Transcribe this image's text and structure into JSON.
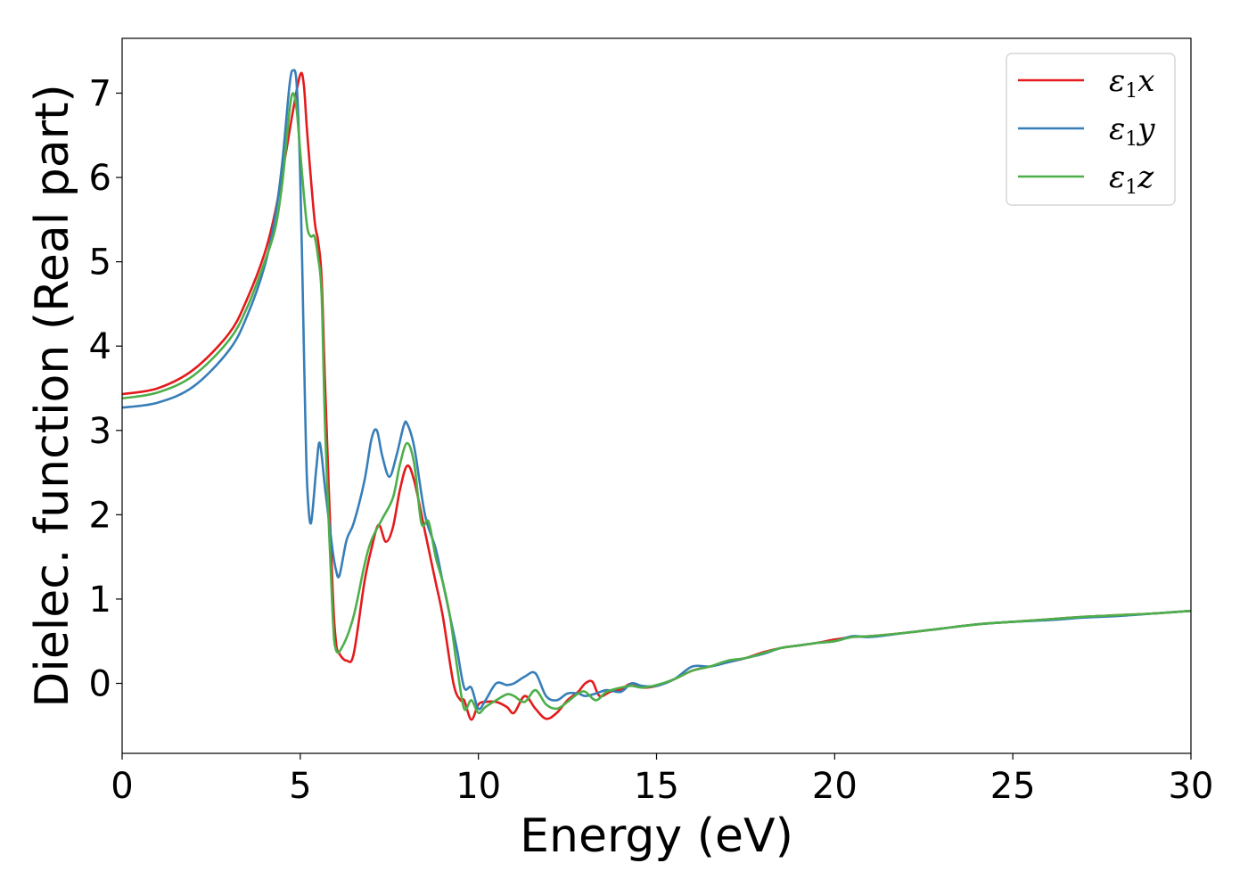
{
  "chart_data": {
    "type": "line",
    "title": "",
    "xlabel": "Energy (eV)",
    "ylabel": "Dielec. function (Real part)",
    "xlim": [
      0,
      30
    ],
    "ylim": [
      -0.83,
      7.65
    ],
    "xticks": [
      0,
      5,
      10,
      15,
      20,
      25,
      30
    ],
    "yticks": [
      0,
      1,
      2,
      3,
      4,
      5,
      6,
      7
    ],
    "grid": false,
    "legend_position": "top-right",
    "series": [
      {
        "name": "ε₁x",
        "legend_main": "ε",
        "legend_sub": "1",
        "legend_tail": "x",
        "color": "#e41a1c",
        "x": [
          0,
          1,
          2,
          3,
          3.5,
          4,
          4.3,
          4.6,
          4.8,
          5.0,
          5.1,
          5.2,
          5.4,
          5.5,
          5.6,
          5.7,
          5.9,
          6.0,
          6.1,
          6.3,
          6.5,
          6.8,
          7.0,
          7.2,
          7.4,
          7.6,
          7.8,
          8.0,
          8.2,
          8.5,
          8.8,
          9.0,
          9.3,
          9.5,
          9.6,
          9.8,
          10.0,
          10.2,
          10.5,
          10.8,
          11.0,
          11.3,
          11.6,
          11.9,
          12.2,
          12.5,
          12.8,
          13.0,
          13.2,
          13.4,
          13.7,
          14.0,
          14.3,
          14.6,
          15.0,
          15.5,
          16.0,
          16.5,
          17.0,
          17.5,
          18.0,
          18.5,
          19.0,
          19.5,
          20.0,
          20.5,
          21.0,
          22.0,
          23.0,
          24.0,
          25.0,
          26.0,
          27.0,
          28.0,
          29.0,
          30.0
        ],
        "y": [
          3.43,
          3.5,
          3.72,
          4.15,
          4.55,
          5.1,
          5.6,
          6.3,
          6.8,
          7.22,
          7.1,
          6.5,
          5.5,
          5.25,
          4.8,
          3.5,
          1.2,
          0.5,
          0.35,
          0.27,
          0.35,
          1.2,
          1.6,
          1.88,
          1.68,
          1.85,
          2.3,
          2.58,
          2.4,
          1.8,
          1.2,
          0.8,
          0.0,
          -0.2,
          -0.2,
          -0.43,
          -0.25,
          -0.22,
          -0.22,
          -0.28,
          -0.35,
          -0.15,
          -0.3,
          -0.42,
          -0.35,
          -0.2,
          -0.1,
          0.0,
          0.02,
          -0.15,
          -0.1,
          -0.07,
          0.0,
          -0.05,
          -0.03,
          0.05,
          0.15,
          0.2,
          0.25,
          0.3,
          0.37,
          0.42,
          0.45,
          0.48,
          0.52,
          0.55,
          0.56,
          0.6,
          0.65,
          0.7,
          0.73,
          0.76,
          0.79,
          0.81,
          0.83,
          0.86
        ]
      },
      {
        "name": "ε₁y",
        "legend_main": "ε",
        "legend_sub": "1",
        "legend_tail": "y",
        "color": "#377eb8",
        "x": [
          0,
          1,
          2,
          3,
          3.5,
          4,
          4.3,
          4.5,
          4.7,
          4.8,
          4.9,
          5.0,
          5.1,
          5.15,
          5.2,
          5.3,
          5.45,
          5.55,
          5.7,
          5.9,
          6.0,
          6.1,
          6.3,
          6.5,
          6.8,
          7.0,
          7.15,
          7.3,
          7.5,
          7.7,
          7.9,
          8.0,
          8.2,
          8.5,
          8.8,
          9.0,
          9.2,
          9.4,
          9.6,
          9.8,
          10.0,
          10.2,
          10.5,
          10.8,
          11.0,
          11.3,
          11.6,
          11.9,
          12.2,
          12.5,
          12.8,
          13.0,
          13.3,
          13.6,
          14.0,
          14.3,
          14.6,
          15.0,
          15.5,
          16.0,
          16.5,
          17.0,
          17.5,
          18.0,
          18.5,
          19.0,
          19.5,
          20.0,
          20.5,
          21.0,
          22.0,
          23.0,
          24.0,
          25.0,
          26.0,
          27.0,
          28.0,
          29.0,
          30.0
        ],
        "y": [
          3.27,
          3.33,
          3.52,
          3.95,
          4.35,
          4.95,
          5.55,
          6.2,
          7.1,
          7.27,
          7.1,
          6.0,
          4.0,
          3.0,
          2.3,
          1.9,
          2.55,
          2.85,
          2.3,
          1.6,
          1.35,
          1.28,
          1.7,
          1.9,
          2.4,
          2.9,
          3.0,
          2.7,
          2.45,
          2.7,
          3.05,
          3.08,
          2.8,
          2.0,
          1.6,
          1.2,
          0.8,
          0.4,
          -0.05,
          -0.05,
          -0.3,
          -0.2,
          0.0,
          -0.02,
          0.0,
          0.08,
          0.12,
          -0.15,
          -0.2,
          -0.12,
          -0.12,
          -0.15,
          -0.12,
          -0.08,
          -0.1,
          0.0,
          -0.03,
          -0.03,
          0.05,
          0.2,
          0.2,
          0.25,
          0.3,
          0.35,
          0.42,
          0.45,
          0.48,
          0.5,
          0.56,
          0.55,
          0.6,
          0.65,
          0.7,
          0.73,
          0.75,
          0.78,
          0.8,
          0.83,
          0.86
        ]
      },
      {
        "name": "ε₁z",
        "legend_main": "ε",
        "legend_sub": "1",
        "legend_tail": "z",
        "color": "#4daf4a",
        "x": [
          0,
          1,
          2,
          3,
          3.5,
          4,
          4.3,
          4.5,
          4.7,
          4.8,
          4.9,
          5.0,
          5.1,
          5.2,
          5.3,
          5.4,
          5.5,
          5.6,
          5.7,
          5.9,
          6.0,
          6.2,
          6.5,
          6.8,
          7.0,
          7.3,
          7.6,
          7.8,
          8.0,
          8.2,
          8.4,
          8.6,
          8.8,
          9.0,
          9.2,
          9.4,
          9.6,
          9.8,
          10.0,
          10.2,
          10.5,
          10.8,
          11.0,
          11.3,
          11.6,
          11.9,
          12.2,
          12.5,
          12.8,
          13.0,
          13.3,
          13.6,
          14.0,
          14.3,
          14.6,
          15.0,
          15.5,
          16.0,
          16.5,
          17.0,
          17.5,
          18.0,
          18.5,
          19.0,
          19.5,
          20.0,
          20.5,
          21.0,
          22.0,
          23.0,
          24.0,
          25.0,
          26.0,
          27.0,
          28.0,
          29.0,
          30.0
        ],
        "y": [
          3.38,
          3.45,
          3.65,
          4.07,
          4.45,
          5.0,
          5.4,
          5.95,
          6.8,
          7.0,
          6.8,
          6.3,
          5.8,
          5.4,
          5.3,
          5.3,
          5.05,
          4.6,
          3.0,
          0.9,
          0.4,
          0.45,
          0.8,
          1.4,
          1.7,
          1.95,
          2.2,
          2.6,
          2.85,
          2.6,
          1.9,
          1.92,
          1.5,
          1.2,
          0.8,
          0.2,
          -0.3,
          -0.2,
          -0.35,
          -0.28,
          -0.2,
          -0.13,
          -0.15,
          -0.22,
          -0.08,
          -0.25,
          -0.3,
          -0.22,
          -0.12,
          -0.1,
          -0.2,
          -0.1,
          -0.05,
          -0.03,
          -0.05,
          -0.02,
          0.05,
          0.15,
          0.2,
          0.27,
          0.3,
          0.36,
          0.42,
          0.45,
          0.48,
          0.5,
          0.55,
          0.56,
          0.6,
          0.65,
          0.7,
          0.73,
          0.76,
          0.79,
          0.81,
          0.83,
          0.86
        ]
      }
    ]
  }
}
